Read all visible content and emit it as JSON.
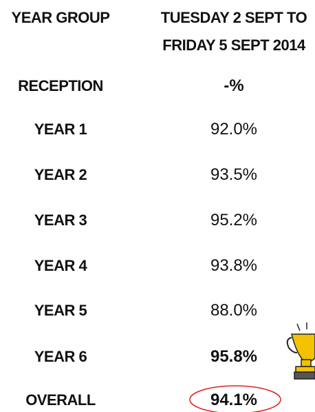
{
  "table": {
    "header": [
      "YEAR GROUP",
      "TUESDAY 2 SEPT TO FRIDAY 5 SEPT 2014"
    ],
    "rows": [
      [
        "RECEPTION",
        "-%"
      ],
      [
        "YEAR 1",
        "92.0%"
      ],
      [
        "YEAR 2",
        "93.5%"
      ],
      [
        "YEAR 3",
        "95.2%"
      ],
      [
        "YEAR 4",
        "93.8%"
      ],
      [
        "YEAR 5",
        "88.0%"
      ],
      [
        "YEAR 6",
        "95.8%"
      ],
      [
        "OVERALL",
        "94.1%"
      ]
    ]
  }
}
